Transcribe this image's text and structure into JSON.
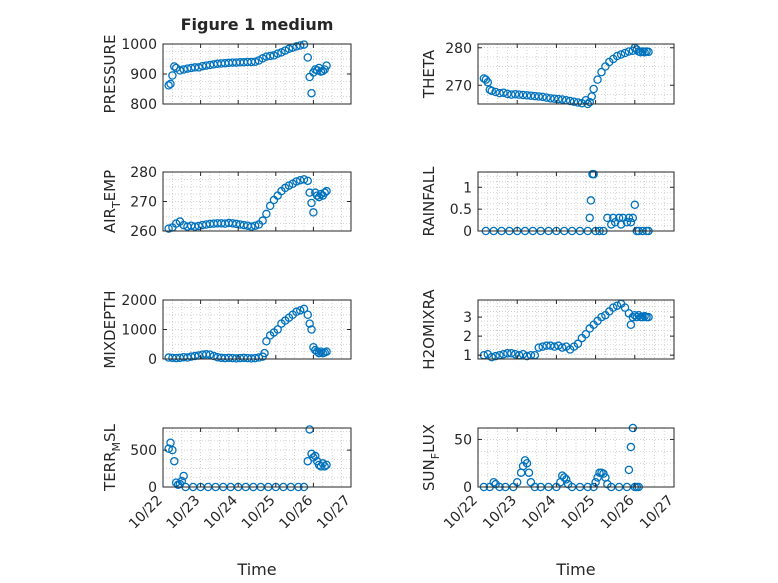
{
  "figure": {
    "title": "Figure 1 medium"
  },
  "chart_data": [
    {
      "type": "scatter",
      "ylabel": "PRESSURE",
      "xlabel": "",
      "title": "Figure 1 medium",
      "xlim": [
        "10/22",
        "10/27"
      ],
      "ylim": [
        800,
        1000
      ],
      "yticks": [
        800,
        900,
        1000
      ],
      "xticklabels": [],
      "grid": true,
      "x": [
        "10/22",
        "10/22",
        "10/22",
        "10/22",
        "10/22",
        "10/22",
        "10/23",
        "10/23",
        "10/23",
        "10/23",
        "10/23",
        "10/23",
        "10/23",
        "10/23",
        "10/23",
        "10/23",
        "10/23",
        "10/24",
        "10/24",
        "10/24",
        "10/24",
        "10/24",
        "10/24",
        "10/24",
        "10/24",
        "10/24",
        "10/24",
        "10/24",
        "10/24",
        "10/25",
        "10/25",
        "10/25",
        "10/25",
        "10/25",
        "10/25",
        "10/25",
        "10/25",
        "10/25",
        "10/25",
        "10/26",
        "10/26",
        "10/26",
        "10/26",
        "10/26",
        "10/26",
        "10/26",
        "10/26",
        "10/26",
        "10/26",
        "10/26"
      ],
      "xdays": [
        0.15,
        0.2,
        0.25,
        0.3,
        0.35,
        0.45,
        0.55,
        0.65,
        0.75,
        0.85,
        0.95,
        1.05,
        1.15,
        1.25,
        1.35,
        1.45,
        1.55,
        1.65,
        1.75,
        1.85,
        1.95,
        2.05,
        2.15,
        2.25,
        2.35,
        2.45,
        2.55,
        2.65,
        2.75,
        2.85,
        2.95,
        3.05,
        3.15,
        3.25,
        3.35,
        3.45,
        3.55,
        3.65,
        3.75,
        3.85,
        3.9,
        3.95,
        4.0,
        4.05,
        4.1,
        4.15,
        4.2,
        4.25,
        4.3,
        4.35
      ],
      "y": [
        862,
        867,
        895,
        925,
        920,
        912,
        915,
        918,
        920,
        922,
        922,
        926,
        928,
        930,
        932,
        934,
        935,
        936,
        937,
        938,
        938,
        939,
        939,
        940,
        940,
        941,
        945,
        952,
        958,
        960,
        962,
        968,
        972,
        978,
        984,
        988,
        992,
        995,
        998,
        955,
        890,
        836,
        905,
        915,
        912,
        920,
        908,
        910,
        915,
        928
      ]
    },
    {
      "type": "scatter",
      "ylabel": "THETA",
      "xlabel": "",
      "xlim": [
        "10/22",
        "10/27"
      ],
      "ylim": [
        265,
        281
      ],
      "yticks": [
        270,
        280
      ],
      "xticklabels": [],
      "grid": true,
      "xdays": [
        0.15,
        0.2,
        0.25,
        0.3,
        0.35,
        0.45,
        0.55,
        0.65,
        0.75,
        0.85,
        0.95,
        1.05,
        1.15,
        1.25,
        1.35,
        1.45,
        1.55,
        1.65,
        1.75,
        1.85,
        1.95,
        2.05,
        2.15,
        2.25,
        2.35,
        2.45,
        2.55,
        2.65,
        2.75,
        2.8,
        2.85,
        2.9,
        2.95,
        3.05,
        3.15,
        3.25,
        3.35,
        3.45,
        3.55,
        3.65,
        3.75,
        3.85,
        3.95,
        4.0,
        4.05,
        4.1,
        4.15,
        4.2,
        4.25,
        4.3,
        4.35
      ],
      "y": [
        271.8,
        271.5,
        270.8,
        268.8,
        268.5,
        268.2,
        267.9,
        268.0,
        267.7,
        267.5,
        267.6,
        267.5,
        267.4,
        267.3,
        267.2,
        267.1,
        267.0,
        266.9,
        266.7,
        266.5,
        266.4,
        266.3,
        266.2,
        266.0,
        265.8,
        265.6,
        265.4,
        265.2,
        266.0,
        265.0,
        265.5,
        267.0,
        269.0,
        271.5,
        273.5,
        275.0,
        276.2,
        277.0,
        277.8,
        278.2,
        278.6,
        279.0,
        279.2,
        280.0,
        279.5,
        279.0,
        278.8,
        279.0,
        278.8,
        279.0,
        278.9
      ]
    },
    {
      "type": "scatter",
      "ylabel": "AIR_TEMP",
      "xlabel": "",
      "xlim": [
        "10/22",
        "10/27"
      ],
      "ylim": [
        260,
        280
      ],
      "yticks": [
        260,
        270,
        280
      ],
      "xticklabels": [],
      "grid": true,
      "xdays": [
        0.15,
        0.25,
        0.35,
        0.45,
        0.55,
        0.65,
        0.75,
        0.85,
        0.95,
        1.05,
        1.15,
        1.25,
        1.35,
        1.45,
        1.55,
        1.65,
        1.75,
        1.85,
        1.95,
        2.05,
        2.15,
        2.25,
        2.35,
        2.45,
        2.55,
        2.65,
        2.75,
        2.85,
        2.95,
        3.05,
        3.15,
        3.25,
        3.35,
        3.45,
        3.55,
        3.65,
        3.75,
        3.85,
        3.9,
        3.95,
        4.0,
        4.05,
        4.1,
        4.15,
        4.2,
        4.25,
        4.3,
        4.35
      ],
      "y": [
        260.8,
        261.2,
        262.5,
        263.2,
        262.0,
        261.5,
        261.8,
        261.5,
        261.7,
        262.0,
        262.2,
        262.4,
        262.5,
        262.6,
        262.6,
        262.5,
        262.7,
        262.6,
        262.4,
        262.2,
        262.0,
        261.8,
        261.5,
        261.8,
        262.2,
        263.5,
        265.8,
        268.5,
        270.5,
        272.0,
        273.5,
        274.6,
        275.4,
        276.0,
        276.8,
        277.2,
        277.5,
        277.0,
        273.0,
        269.5,
        266.3,
        273.0,
        272.0,
        271.5,
        272.5,
        272.0,
        273.0,
        273.5
      ]
    },
    {
      "type": "scatter",
      "ylabel": "RAINFALL",
      "xlabel": "",
      "xlim": [
        "10/22",
        "10/27"
      ],
      "ylim": [
        0,
        1.35
      ],
      "yticks": [
        0,
        0.5,
        1
      ],
      "xticklabels": [],
      "grid": true,
      "xdays": [
        0.2,
        0.4,
        0.6,
        0.8,
        1.0,
        1.2,
        1.4,
        1.6,
        1.8,
        2.0,
        2.2,
        2.4,
        2.6,
        2.8,
        2.85,
        2.88,
        2.92,
        2.95,
        3.0,
        3.1,
        3.2,
        3.3,
        3.4,
        3.45,
        3.5,
        3.6,
        3.65,
        3.7,
        3.8,
        3.85,
        3.9,
        3.95,
        4.0,
        4.05,
        4.1,
        4.2,
        4.3,
        4.35
      ],
      "y": [
        0,
        0,
        0,
        0,
        0,
        0,
        0,
        0,
        0,
        0,
        0,
        0,
        0,
        0,
        0.3,
        0.7,
        1.3,
        1.3,
        0,
        0,
        0,
        0.3,
        0.15,
        0.3,
        0.2,
        0.3,
        0.15,
        0.3,
        0.2,
        0.3,
        0.2,
        0.3,
        0.6,
        0,
        0,
        0,
        0,
        0
      ]
    },
    {
      "type": "scatter",
      "ylabel": "MIXDEPTH",
      "xlabel": "",
      "xlim": [
        "10/22",
        "10/27"
      ],
      "ylim": [
        0,
        2000
      ],
      "yticks": [
        0,
        1000,
        2000
      ],
      "xticklabels": [],
      "grid": true,
      "xdays": [
        0.15,
        0.25,
        0.35,
        0.45,
        0.55,
        0.65,
        0.75,
        0.85,
        0.95,
        1.05,
        1.15,
        1.25,
        1.35,
        1.45,
        1.55,
        1.65,
        1.75,
        1.85,
        1.95,
        2.05,
        2.15,
        2.25,
        2.35,
        2.45,
        2.55,
        2.65,
        2.7,
        2.75,
        2.85,
        2.95,
        3.05,
        3.15,
        3.25,
        3.35,
        3.45,
        3.55,
        3.65,
        3.75,
        3.85,
        3.9,
        3.95,
        4.0,
        4.05,
        4.1,
        4.15,
        4.2,
        4.25,
        4.3,
        4.35
      ],
      "y": [
        50,
        40,
        30,
        40,
        60,
        50,
        80,
        100,
        120,
        150,
        160,
        150,
        100,
        60,
        40,
        30,
        40,
        30,
        20,
        30,
        40,
        30,
        20,
        30,
        50,
        80,
        200,
        600,
        800,
        900,
        1000,
        1200,
        1300,
        1400,
        1500,
        1600,
        1650,
        1700,
        1500,
        1200,
        1000,
        400,
        300,
        250,
        200,
        250,
        200,
        220,
        250
      ]
    },
    {
      "type": "scatter",
      "ylabel": "H2OMIXRA",
      "xlabel": "",
      "xlim": [
        "10/22",
        "10/27"
      ],
      "ylim": [
        0.8,
        3.9
      ],
      "yticks": [
        1,
        2,
        3
      ],
      "xticklabels": [],
      "grid": true,
      "xdays": [
        0.15,
        0.25,
        0.35,
        0.45,
        0.55,
        0.65,
        0.75,
        0.85,
        0.95,
        1.05,
        1.15,
        1.25,
        1.35,
        1.45,
        1.55,
        1.65,
        1.75,
        1.85,
        1.95,
        2.05,
        2.15,
        2.25,
        2.35,
        2.45,
        2.55,
        2.65,
        2.75,
        2.85,
        2.95,
        3.05,
        3.15,
        3.25,
        3.35,
        3.45,
        3.55,
        3.65,
        3.75,
        3.85,
        3.9,
        3.95,
        4.0,
        4.05,
        4.1,
        4.15,
        4.2,
        4.25,
        4.3,
        4.35
      ],
      "y": [
        1.0,
        1.05,
        0.9,
        0.95,
        1.0,
        1.05,
        1.1,
        1.1,
        1.05,
        1.0,
        1.05,
        0.95,
        1.0,
        1.0,
        1.4,
        1.45,
        1.5,
        1.5,
        1.45,
        1.5,
        1.4,
        1.45,
        1.3,
        1.45,
        1.6,
        1.9,
        2.1,
        2.4,
        2.6,
        2.8,
        3.0,
        3.1,
        3.3,
        3.5,
        3.6,
        3.7,
        3.5,
        3.2,
        2.6,
        3.0,
        3.1,
        3.0,
        3.1,
        3.0,
        3.0,
        3.05,
        3.0,
        3.0
      ]
    },
    {
      "type": "scatter",
      "ylabel": "TERR_MSL",
      "xlabel": "Time",
      "xlim": [
        "10/22",
        "10/27"
      ],
      "ylim": [
        0,
        800
      ],
      "yticks": [
        0,
        500
      ],
      "xticklabels": [
        "10/22",
        "10/23",
        "10/24",
        "10/25",
        "10/26",
        "10/27"
      ],
      "grid": true,
      "xdays": [
        0.15,
        0.2,
        0.25,
        0.3,
        0.35,
        0.4,
        0.45,
        0.5,
        0.55,
        0.6,
        0.8,
        1.0,
        1.2,
        1.4,
        1.6,
        1.8,
        2.0,
        2.2,
        2.4,
        2.6,
        2.8,
        3.0,
        3.2,
        3.4,
        3.6,
        3.75,
        3.85,
        3.9,
        3.95,
        4.0,
        4.05,
        4.1,
        4.15,
        4.2,
        4.25,
        4.3,
        4.35
      ],
      "y": [
        520,
        600,
        500,
        350,
        60,
        30,
        40,
        80,
        150,
        0,
        0,
        0,
        0,
        0,
        0,
        0,
        0,
        0,
        0,
        0,
        0,
        0,
        0,
        0,
        0,
        0,
        350,
        780,
        450,
        400,
        420,
        350,
        300,
        280,
        320,
        280,
        300
      ]
    },
    {
      "type": "scatter",
      "ylabel": "SUN_FLUX",
      "xlabel": "Time",
      "xlim": [
        "10/22",
        "10/27"
      ],
      "ylim": [
        0,
        62
      ],
      "yticks": [
        0,
        50
      ],
      "xticklabels": [
        "10/22",
        "10/23",
        "10/24",
        "10/25",
        "10/26",
        "10/27"
      ],
      "grid": true,
      "xdays": [
        0.15,
        0.3,
        0.4,
        0.45,
        0.55,
        0.7,
        0.9,
        1.0,
        1.1,
        1.15,
        1.2,
        1.25,
        1.3,
        1.35,
        1.45,
        1.6,
        1.8,
        2.0,
        2.1,
        2.15,
        2.2,
        2.25,
        2.3,
        2.4,
        2.6,
        2.8,
        2.95,
        3.0,
        3.05,
        3.1,
        3.15,
        3.2,
        3.25,
        3.3,
        3.4,
        3.6,
        3.8,
        3.85,
        3.9,
        3.95,
        4.0,
        4.05,
        4.1
      ],
      "y": [
        0,
        0,
        5,
        3,
        0,
        0,
        0,
        5,
        15,
        22,
        28,
        25,
        15,
        5,
        0,
        0,
        0,
        0,
        5,
        12,
        10,
        8,
        3,
        0,
        0,
        0,
        0,
        5,
        10,
        15,
        15,
        14,
        10,
        3,
        0,
        0,
        0,
        18,
        42,
        62,
        0,
        0,
        0
      ]
    }
  ]
}
